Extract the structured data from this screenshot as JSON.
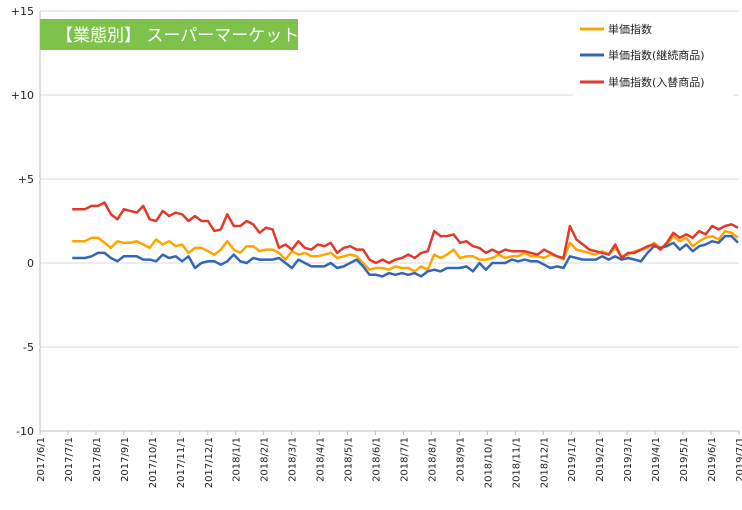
{
  "chart_data": {
    "type": "line",
    "title": "【業態別】 スーパーマーケット",
    "title_bg": "#7dc34b",
    "ylim": [
      -10,
      15
    ],
    "ytick_values": [
      15,
      10,
      5,
      0,
      -5,
      -10
    ],
    "ytick_labels": [
      "+15",
      "+10",
      "+5",
      "0",
      "-5",
      "-10"
    ],
    "xtick_labels": [
      "2017/6/1",
      "2017/7/1",
      "2017/8/1",
      "2017/9/1",
      "2017/10/1",
      "2017/11/1",
      "2017/12/1",
      "2018/1/1",
      "2018/2/1",
      "2018/3/1",
      "2018/4/1",
      "2018/5/1",
      "2018/6/1",
      "2018/7/1",
      "2018/8/1",
      "2018/9/1",
      "2018/10/1",
      "2018/11/1",
      "2018/12/1",
      "2019/1/1",
      "2019/2/1",
      "2019/3/1",
      "2019/4/1",
      "2019/5/1",
      "2019/6/1",
      "2019/7/1"
    ],
    "grid": "horizontal",
    "legend_position": "top-right",
    "series": [
      {
        "name": "単価指数",
        "color": "#ffa500",
        "values": [
          1.3,
          1.3,
          1.3,
          1.5,
          1.5,
          1.2,
          0.9,
          1.3,
          1.2,
          1.2,
          1.3,
          1.1,
          0.9,
          1.4,
          1.1,
          1.3,
          1.0,
          1.1,
          0.6,
          0.9,
          0.9,
          0.7,
          0.5,
          0.8,
          1.3,
          0.8,
          0.6,
          1.0,
          1.0,
          0.7,
          0.8,
          0.8,
          0.6,
          0.2,
          0.7,
          0.5,
          0.6,
          0.4,
          0.4,
          0.5,
          0.6,
          0.3,
          0.4,
          0.5,
          0.4,
          0.0,
          -0.4,
          -0.3,
          -0.3,
          -0.4,
          -0.2,
          -0.3,
          -0.3,
          -0.5,
          -0.2,
          -0.4,
          0.5,
          0.3,
          0.5,
          0.8,
          0.3,
          0.4,
          0.4,
          0.2,
          0.2,
          0.3,
          0.5,
          0.3,
          0.4,
          0.4,
          0.6,
          0.4,
          0.4,
          0.3,
          0.5,
          0.4,
          0.2,
          1.2,
          0.8,
          0.7,
          0.6,
          0.5,
          0.7,
          0.5,
          0.9,
          0.4,
          0.5,
          0.7,
          0.8,
          0.9,
          1.2,
          0.9,
          1.1,
          1.6,
          1.3,
          1.5,
          1.0,
          1.3,
          1.5,
          1.6,
          1.4,
          1.9,
          1.8,
          1.5
        ]
      },
      {
        "name": "単価指数(継続商品)",
        "color": "#3366b8",
        "values": [
          0.3,
          0.3,
          0.3,
          0.4,
          0.6,
          0.6,
          0.3,
          0.1,
          0.4,
          0.4,
          0.4,
          0.2,
          0.2,
          0.1,
          0.5,
          0.3,
          0.4,
          0.1,
          0.4,
          -0.3,
          0.0,
          0.1,
          0.1,
          -0.1,
          0.1,
          0.5,
          0.1,
          0.0,
          0.3,
          0.2,
          0.2,
          0.2,
          0.3,
          0.0,
          -0.3,
          0.2,
          0.0,
          -0.2,
          -0.2,
          -0.2,
          0.0,
          -0.3,
          -0.2,
          0.0,
          0.2,
          -0.2,
          -0.7,
          -0.7,
          -0.8,
          -0.6,
          -0.7,
          -0.6,
          -0.7,
          -0.6,
          -0.8,
          -0.5,
          -0.4,
          -0.5,
          -0.3,
          -0.3,
          -0.3,
          -0.2,
          -0.5,
          0.0,
          -0.4,
          0.0,
          0.0,
          0.0,
          0.2,
          0.1,
          0.2,
          0.1,
          0.1,
          -0.1,
          -0.3,
          -0.2,
          -0.3,
          0.4,
          0.3,
          0.2,
          0.2,
          0.2,
          0.4,
          0.2,
          0.4,
          0.2,
          0.3,
          0.2,
          0.1,
          0.6,
          1.0,
          0.9,
          1.0,
          1.2,
          0.8,
          1.1,
          0.7,
          1.0,
          1.1,
          1.3,
          1.2,
          1.6,
          1.6,
          1.2
        ]
      },
      {
        "name": "単価指数(入替商品)",
        "color": "#e03a2a",
        "values": [
          3.2,
          3.2,
          3.2,
          3.4,
          3.4,
          3.6,
          2.9,
          2.6,
          3.2,
          3.1,
          3.0,
          3.4,
          2.6,
          2.5,
          3.1,
          2.8,
          3.0,
          2.9,
          2.5,
          2.8,
          2.5,
          2.5,
          1.9,
          2.0,
          2.9,
          2.2,
          2.2,
          2.5,
          2.3,
          1.8,
          2.1,
          2.0,
          0.9,
          1.1,
          0.8,
          1.3,
          0.9,
          0.8,
          1.1,
          1.0,
          1.2,
          0.6,
          0.9,
          1.0,
          0.8,
          0.8,
          0.2,
          0.0,
          0.2,
          0.0,
          0.2,
          0.3,
          0.5,
          0.3,
          0.6,
          0.7,
          1.9,
          1.6,
          1.6,
          1.7,
          1.2,
          1.3,
          1.0,
          0.9,
          0.6,
          0.8,
          0.6,
          0.8,
          0.7,
          0.7,
          0.7,
          0.6,
          0.5,
          0.8,
          0.6,
          0.4,
          0.3,
          2.2,
          1.4,
          1.1,
          0.8,
          0.7,
          0.6,
          0.5,
          1.1,
          0.3,
          0.6,
          0.6,
          0.8,
          1.0,
          1.1,
          0.8,
          1.2,
          1.8,
          1.5,
          1.7,
          1.5,
          1.9,
          1.7,
          2.2,
          2.0,
          2.2,
          2.3,
          2.1
        ]
      }
    ]
  }
}
